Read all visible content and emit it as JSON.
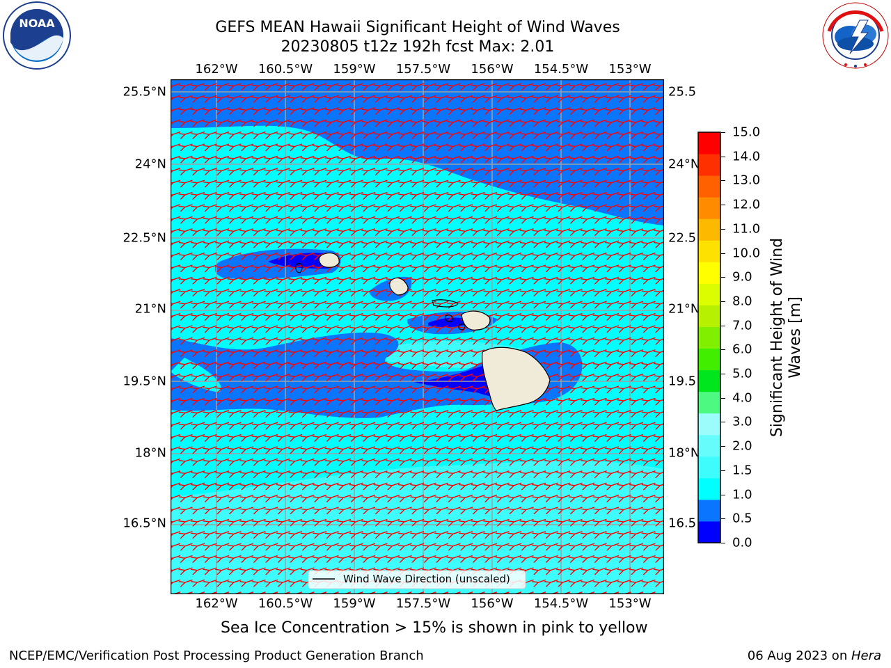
{
  "title": {
    "line1": "GEFS MEAN Hawaii Significant Height of Wind Waves",
    "line2": "20230805 t12z 192h fcst   Max: 2.01"
  },
  "logos": {
    "noaa": {
      "text": "NOAA",
      "ring_text": "NATIONAL OCEANIC AND ATMOSPHERIC ADMINISTRATION · U.S. DEPARTMENT OF COMMERCE"
    },
    "nws": {
      "ring_text": "NATIONAL WEATHER SERVICE"
    }
  },
  "map": {
    "lon_labels": [
      "162°W",
      "160.5°W",
      "159°W",
      "157.5°W",
      "156°W",
      "154.5°W",
      "153°W"
    ],
    "lat_labels": [
      "25.5°N",
      "24°N",
      "22.5°N",
      "21°N",
      "19.5°N",
      "18°N",
      "16.5°N"
    ],
    "ocean_fill": "cyan shades by wave height",
    "arrow_color": "#ff0000",
    "legend_label": "Wind Wave Direction (unscaled)"
  },
  "colorbar": {
    "label_line1": "Significant Height of Wind",
    "label_line2": "Waves [m]",
    "ticks": [
      "15.0",
      "14.0",
      "13.0",
      "12.0",
      "11.0",
      "10.0",
      "9.0",
      "8.0",
      "7.0",
      "6.0",
      "5.0",
      "4.0",
      "3.0",
      "2.0",
      "1.5",
      "1.0",
      "0.5",
      "0.0"
    ],
    "colors_bottom_to_top": [
      "#0000ff",
      "#0a76ff",
      "#00ffff",
      "#3ffcfc",
      "#66fcfc",
      "#9cfcfc",
      "#4ef982",
      "#00e61e",
      "#41ee00",
      "#80f000",
      "#b7f000",
      "#dcfc00",
      "#ffff00",
      "#fde100",
      "#fdb800",
      "#ff8c00",
      "#ff6000",
      "#ff3000",
      "#ff0000"
    ]
  },
  "caption": "Sea Ice Concentration > 15% is shown in pink to yellow",
  "footer": {
    "left": "NCEP/EMC/Verification Post Processing Product Generation Branch",
    "right_date": "06 Aug 2023 on ",
    "right_host": "Hera"
  }
}
